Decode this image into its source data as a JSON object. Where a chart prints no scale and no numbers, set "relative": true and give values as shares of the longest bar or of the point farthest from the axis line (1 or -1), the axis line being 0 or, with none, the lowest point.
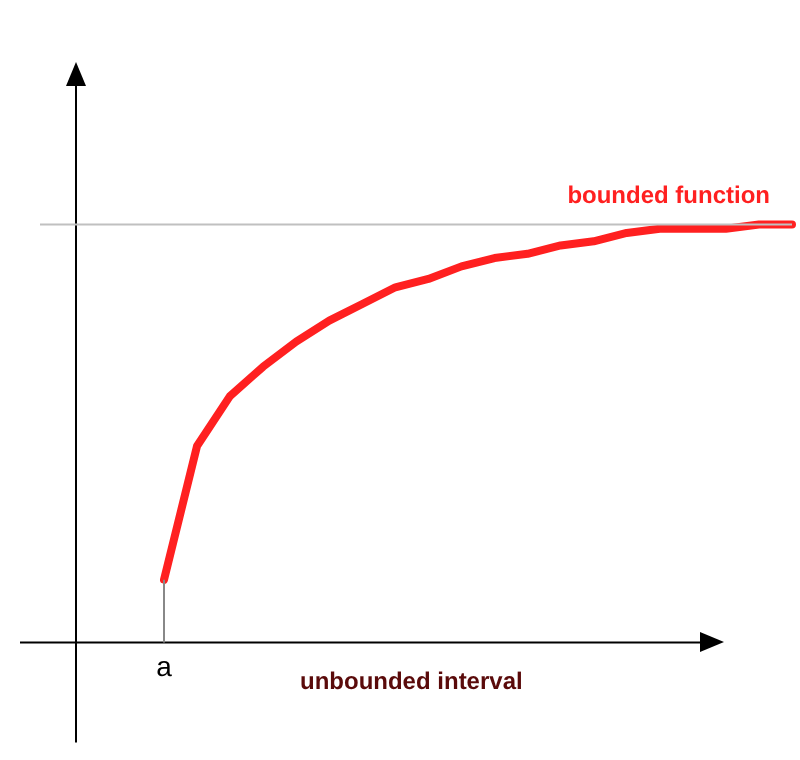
{
  "chart_data": {
    "type": "line",
    "relative": true,
    "xlabel": "unbounded interval",
    "annotations": [
      "a"
    ],
    "categories": [
      null,
      null,
      null,
      null,
      null,
      null,
      null,
      null,
      null,
      null,
      null,
      null,
      null,
      null,
      null,
      null,
      null,
      null,
      null,
      null
    ],
    "series": [
      {
        "name": "bounded function",
        "color": "#ff2020",
        "values": [
          0.15,
          0.47,
          0.59,
          0.66,
          0.72,
          0.77,
          0.81,
          0.85,
          0.87,
          0.9,
          0.92,
          0.93,
          0.95,
          0.96,
          0.98,
          0.99,
          0.99,
          0.99,
          1,
          1
        ]
      }
    ],
    "ref_lines": [
      {
        "axis": "y",
        "value": 1,
        "color": "#c0c0c0"
      }
    ],
    "legend": false,
    "marker": "none",
    "line_style": "solid"
  }
}
